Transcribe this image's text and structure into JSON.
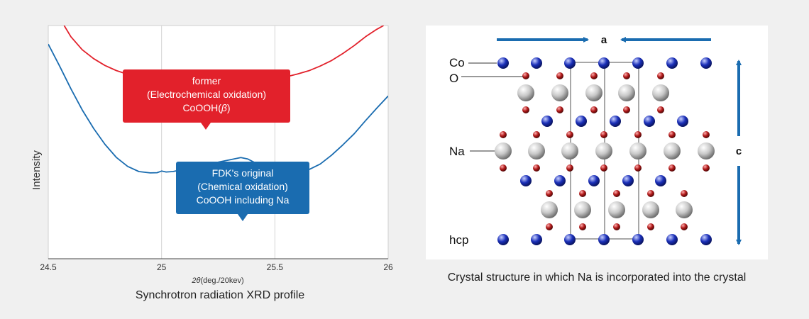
{
  "chart_data": {
    "type": "line",
    "xlabel_prefix": "2θ",
    "xlabel_suffix": "(deg./20kev)",
    "ylabel": "Intensity",
    "xlim": [
      24.5,
      26
    ],
    "x_ticks": [
      "24.5",
      "25",
      "25.5",
      "26"
    ],
    "x_tick_values": [
      24.5,
      25,
      25.5,
      26
    ],
    "grid": true,
    "series": [
      {
        "name": "former (Electrochemical oxidation) CoOOH(β)",
        "color": "#e2212b",
        "x": [
          24.57,
          24.6,
          24.65,
          24.7,
          24.75,
          24.8,
          24.85,
          24.9,
          24.95,
          24.97,
          24.99,
          25.0,
          25.02,
          25.04,
          25.06,
          25.08,
          25.1,
          25.15,
          25.2,
          25.25,
          25.3,
          25.35,
          25.4,
          25.45,
          25.5,
          25.52,
          25.55,
          25.6,
          25.65,
          25.7,
          25.75,
          25.8,
          25.85,
          25.9,
          25.95,
          25.98
        ],
        "y": [
          100,
          95.2,
          89.6,
          85.8,
          82.9,
          80.7,
          79.1,
          78.0,
          77.4,
          77.1,
          78.0,
          78.6,
          78.1,
          77.4,
          77.1,
          77.0,
          76.9,
          76.8,
          76.8,
          76.8,
          76.8,
          76.9,
          77.0,
          77.2,
          77.6,
          78.0,
          78.0,
          79.2,
          80.6,
          82.6,
          85.0,
          88.0,
          91.4,
          95.2,
          98.4,
          100
        ]
      },
      {
        "name": "FDK's original (Chemical oxidation) CoOOH including Na",
        "color": "#1a6cb0",
        "x": [
          24.5,
          24.55,
          24.6,
          24.65,
          24.7,
          24.75,
          24.8,
          24.85,
          24.9,
          24.95,
          24.98,
          25.0,
          25.02,
          25.05,
          25.1,
          25.15,
          25.2,
          25.25,
          25.3,
          25.35,
          25.38,
          25.4,
          25.45,
          25.5,
          25.55,
          25.6,
          25.65,
          25.7,
          25.75,
          25.8,
          25.85,
          25.9,
          25.95,
          26.0
        ],
        "y": [
          92,
          82.6,
          72.9,
          63.8,
          55.9,
          49.1,
          43.5,
          39.6,
          37.4,
          36.8,
          36.9,
          37.6,
          37.2,
          37.4,
          38.4,
          39.4,
          40.4,
          41.4,
          42.4,
          43.4,
          42.8,
          41.8,
          39.4,
          37.6,
          37.2,
          37.4,
          38.2,
          40.6,
          44.4,
          48.8,
          53.6,
          59.2,
          64.6,
          69.8
        ]
      }
    ],
    "callouts": [
      {
        "lines": [
          "former",
          "(Electrochemical oxidation)",
          "CoOOH(β)"
        ],
        "color": "#e2212b"
      },
      {
        "lines": [
          "FDK's original",
          "(Chemical oxidation)",
          "CoOOH including Na"
        ],
        "color": "#1a6cb0"
      }
    ]
  },
  "chart_caption": "Synchrotron radiation XRD profile",
  "crystal": {
    "caption": "Crystal structure in which Na is incorporated into the crystal",
    "labels": {
      "co": "Co",
      "o": "O",
      "na": "Na",
      "hcp": "hcp",
      "a": "a",
      "c": "c"
    },
    "colors": {
      "co": "#1a2fb8",
      "o": "#b01818",
      "na": "#c8c8c8",
      "arrow": "#1a6cb0",
      "cell": "#a8a8a8"
    }
  }
}
